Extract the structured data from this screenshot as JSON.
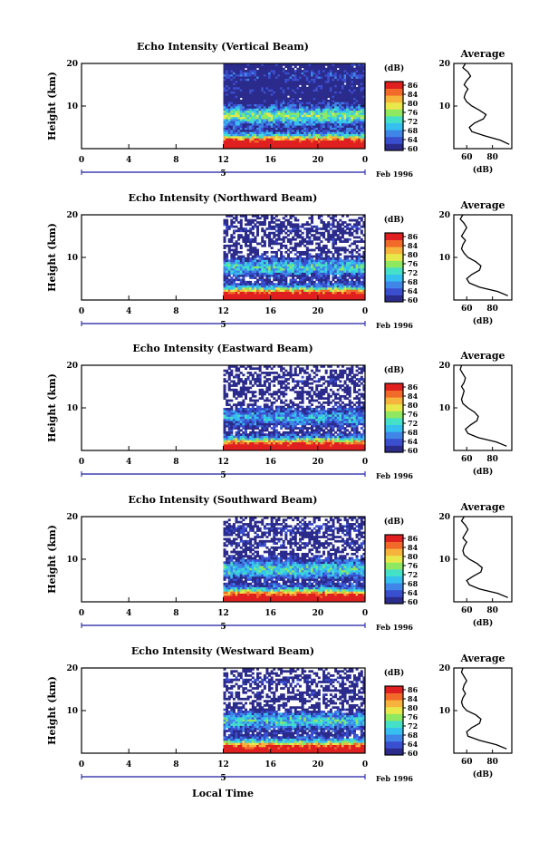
{
  "chart_data": [
    {
      "type": "heatmap",
      "title": "Echo Intensity (Vertical Beam)",
      "ylabel": "Height (km)",
      "ylim": [
        0,
        20
      ],
      "yticks": [
        "20",
        "10"
      ],
      "xticks": [
        "0",
        "4",
        "8",
        "12",
        "16",
        "20",
        "0"
      ],
      "xlim": [
        0,
        24
      ],
      "data_start_hour": 12,
      "date_label": "5",
      "date_suffix": "Feb 1996",
      "colorbar": {
        "unit": "(dB)",
        "ticks": [
          "86",
          "84",
          "80",
          "76",
          "72",
          "68",
          "64",
          "60"
        ],
        "range": [
          60,
          88
        ]
      },
      "profile": {
        "title": "Average",
        "xlabel": "(dB)",
        "xticks": [
          "60",
          "80"
        ],
        "xlim": [
          50,
          95
        ],
        "height_km": [
          1,
          2,
          3,
          4,
          5,
          6,
          7,
          8,
          9,
          10,
          11,
          12,
          13,
          14,
          15,
          16,
          17,
          18,
          19,
          20
        ],
        "values_db": [
          93,
          86,
          74,
          64,
          62,
          66,
          73,
          75,
          70,
          64,
          60,
          58,
          59,
          61,
          58,
          60,
          63,
          61,
          57,
          59
        ]
      }
    },
    {
      "type": "heatmap",
      "title": "Echo Intensity (Northward Beam)",
      "ylabel": "Height (km)",
      "ylim": [
        0,
        20
      ],
      "yticks": [
        "20",
        "10"
      ],
      "xticks": [
        "0",
        "4",
        "8",
        "12",
        "16",
        "20",
        "0"
      ],
      "xlim": [
        0,
        24
      ],
      "data_start_hour": 12,
      "date_label": "5",
      "date_suffix": "Feb 1996",
      "colorbar": {
        "unit": "(dB)",
        "ticks": [
          "86",
          "84",
          "80",
          "76",
          "72",
          "68",
          "64",
          "60"
        ],
        "range": [
          60,
          88
        ]
      },
      "profile": {
        "title": "Average",
        "xlabel": "(dB)",
        "xticks": [
          "60",
          "80"
        ],
        "xlim": [
          50,
          95
        ],
        "height_km": [
          1,
          2,
          3,
          4,
          5,
          6,
          7,
          8,
          9,
          10,
          11,
          12,
          13,
          14,
          15,
          16,
          17,
          18,
          19,
          20
        ],
        "values_db": [
          92,
          84,
          70,
          62,
          60,
          64,
          70,
          71,
          67,
          61,
          58,
          56,
          57,
          59,
          56,
          58,
          60,
          58,
          55,
          57
        ]
      }
    },
    {
      "type": "heatmap",
      "title": "Echo Intensity (Eastward Beam)",
      "ylabel": "Height (km)",
      "ylim": [
        0,
        20
      ],
      "yticks": [
        "20",
        "10"
      ],
      "xticks": [
        "0",
        "4",
        "8",
        "12",
        "16",
        "20",
        "0"
      ],
      "xlim": [
        0,
        24
      ],
      "data_start_hour": 12,
      "date_label": "5",
      "date_suffix": "Feb 1996",
      "colorbar": {
        "unit": "(dB)",
        "ticks": [
          "86",
          "84",
          "80",
          "76",
          "72",
          "68",
          "64",
          "60"
        ],
        "range": [
          60,
          88
        ]
      },
      "profile": {
        "title": "Average",
        "xlabel": "(dB)",
        "xticks": [
          "60",
          "80"
        ],
        "xlim": [
          50,
          95
        ],
        "height_km": [
          1,
          2,
          3,
          4,
          5,
          6,
          7,
          8,
          9,
          10,
          11,
          12,
          13,
          14,
          15,
          16,
          17,
          18,
          19,
          20
        ],
        "values_db": [
          91,
          83,
          69,
          61,
          59,
          63,
          68,
          69,
          66,
          61,
          57,
          56,
          57,
          58,
          56,
          58,
          59,
          57,
          55,
          56
        ]
      }
    },
    {
      "type": "heatmap",
      "title": "Echo Intensity (Southward Beam)",
      "ylabel": "Height (km)",
      "ylim": [
        0,
        20
      ],
      "yticks": [
        "20",
        "10"
      ],
      "xticks": [
        "0",
        "4",
        "8",
        "12",
        "16",
        "20",
        "0"
      ],
      "xlim": [
        0,
        24
      ],
      "data_start_hour": 12,
      "date_label": "5",
      "date_suffix": "Feb 1996",
      "colorbar": {
        "unit": "(dB)",
        "ticks": [
          "86",
          "84",
          "80",
          "76",
          "72",
          "68",
          "64",
          "60"
        ],
        "range": [
          60,
          88
        ]
      },
      "profile": {
        "title": "Average",
        "xlabel": "(dB)",
        "xticks": [
          "60",
          "80"
        ],
        "xlim": [
          50,
          95
        ],
        "height_km": [
          1,
          2,
          3,
          4,
          5,
          6,
          7,
          8,
          9,
          10,
          11,
          12,
          13,
          14,
          15,
          16,
          17,
          18,
          19,
          20
        ],
        "values_db": [
          92,
          84,
          70,
          62,
          60,
          65,
          71,
          72,
          68,
          62,
          58,
          57,
          58,
          60,
          57,
          59,
          61,
          59,
          56,
          58
        ]
      }
    },
    {
      "type": "heatmap",
      "title": "Echo Intensity (Westward Beam)",
      "ylabel": "Height (km)",
      "ylim": [
        0,
        20
      ],
      "yticks": [
        "20",
        "10"
      ],
      "xticks": [
        "0",
        "4",
        "8",
        "12",
        "16",
        "20",
        "0"
      ],
      "xlim": [
        0,
        24
      ],
      "data_start_hour": 12,
      "date_label": "5",
      "date_suffix": "Feb 1996",
      "colorbar": {
        "unit": "(dB)",
        "ticks": [
          "86",
          "84",
          "80",
          "76",
          "72",
          "68",
          "64",
          "60"
        ],
        "range": [
          60,
          88
        ]
      },
      "profile": {
        "title": "Average",
        "xlabel": "(dB)",
        "xticks": [
          "60",
          "80"
        ],
        "xlim": [
          50,
          95
        ],
        "height_km": [
          1,
          2,
          3,
          4,
          5,
          6,
          7,
          8,
          9,
          10,
          11,
          12,
          13,
          14,
          15,
          16,
          17,
          18,
          19,
          20
        ],
        "values_db": [
          91,
          83,
          70,
          61,
          60,
          64,
          70,
          71,
          67,
          60,
          57,
          56,
          57,
          59,
          57,
          58,
          60,
          58,
          56,
          57
        ]
      }
    }
  ],
  "xlabel": "Local Time",
  "colors": {
    "colormap": [
      "#2b2b8c",
      "#3a4fd0",
      "#3f86e8",
      "#35c0f0",
      "#45e0c8",
      "#8ee860",
      "#e8e84a",
      "#f6b43c",
      "#f26a2a",
      "#e02020"
    ],
    "axis": "#000000",
    "date_marker": "#1a1aa0"
  }
}
